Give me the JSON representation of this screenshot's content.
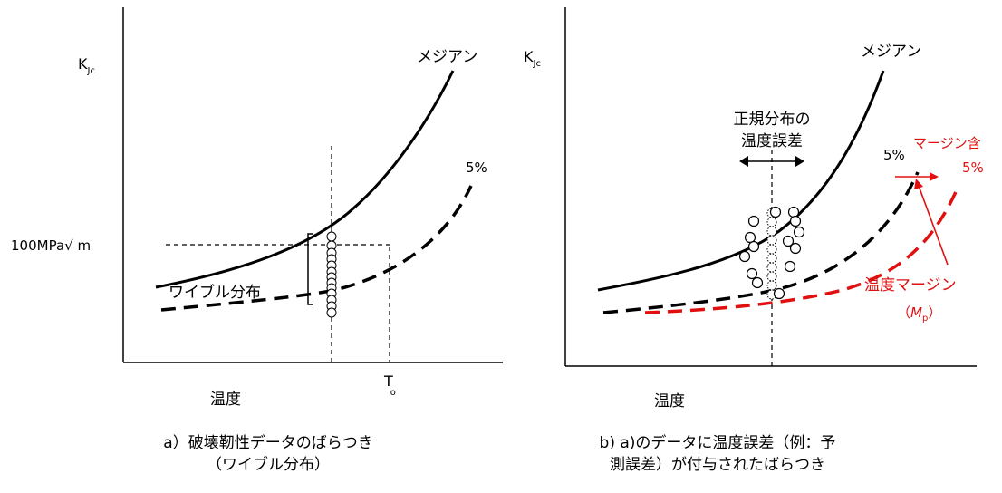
{
  "panel_a": {
    "y_axis_label": "K",
    "y_axis_label_sub": "Jc",
    "x_axis_label": "温度",
    "median_label": "メジアン",
    "p5_label": "5%",
    "ref_value_label": "100MPa√ m",
    "weibull_label": "ワイブル分布",
    "t0_label": "T",
    "t0_sub": "o",
    "caption_line1": "a）破壊靭性データのばらつき",
    "caption_line2": "（ワイブル分布）"
  },
  "panel_b": {
    "y_axis_label": "K",
    "y_axis_label_sub": "Jc",
    "x_axis_label": "温度",
    "median_label": "メジアン",
    "p5_label": "5%",
    "temp_error_line1": "正規分布の",
    "temp_error_line2": "温度誤差",
    "margin_incl_line1": "マージン含",
    "margin_incl_line2": "5%",
    "temp_margin_label": "温度マージン",
    "mp_open": "（",
    "mp_symbol": "M",
    "mp_sub": "p",
    "mp_close": "）",
    "caption_line1": "b) a)のデータに温度誤差（例：予",
    "caption_line2": "測誤差）が付与されたばらつき"
  },
  "colors": {
    "line": "#000000",
    "margin": "#e01010"
  }
}
